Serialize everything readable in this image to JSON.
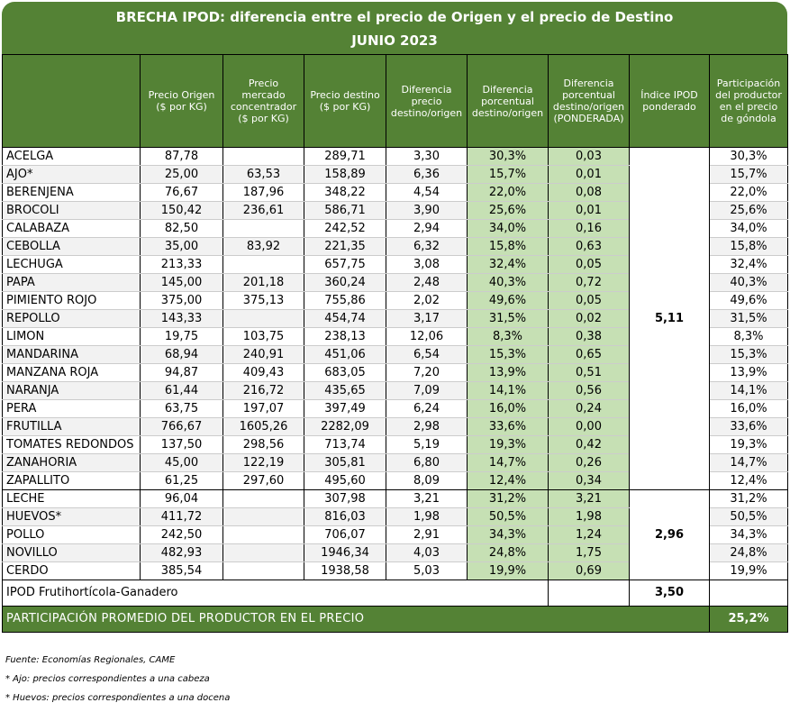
{
  "title": {
    "line1": "BRECHA IPOD: diferencia entre el precio de Origen y el precio de Destino",
    "line2": "JUNIO 2023"
  },
  "headers": [
    "",
    "Precio Origen ($ por KG)",
    "Precio mercado concentrador ($ por KG)",
    "Precio destino ($ por KG)",
    "Diferencia precio destino/origen",
    "Diferencia porcentual destino/origen",
    "Diferencia porcentual destino/origen (PONDERADA)",
    "Índice IPOD ponderado",
    "Participación del productor en el precio de góndola"
  ],
  "group1": {
    "ipod": "5,11",
    "rows": [
      {
        "name": "ACELGA",
        "origen": "87,78",
        "mercado": "",
        "destino": "289,71",
        "dif": "3,30",
        "pct": "30,3%",
        "pond": "0,03",
        "part": "30,3%"
      },
      {
        "name": "AJO*",
        "origen": "25,00",
        "mercado": "63,53",
        "destino": "158,89",
        "dif": "6,36",
        "pct": "15,7%",
        "pond": "0,01",
        "part": "15,7%"
      },
      {
        "name": "BERENJENA",
        "origen": "76,67",
        "mercado": "187,96",
        "destino": "348,22",
        "dif": "4,54",
        "pct": "22,0%",
        "pond": "0,08",
        "part": "22,0%"
      },
      {
        "name": "BROCOLI",
        "origen": "150,42",
        "mercado": "236,61",
        "destino": "586,71",
        "dif": "3,90",
        "pct": "25,6%",
        "pond": "0,01",
        "part": "25,6%"
      },
      {
        "name": "CALABAZA",
        "origen": "82,50",
        "mercado": "",
        "destino": "242,52",
        "dif": "2,94",
        "pct": "34,0%",
        "pond": "0,16",
        "part": "34,0%"
      },
      {
        "name": "CEBOLLA",
        "origen": "35,00",
        "mercado": "83,92",
        "destino": "221,35",
        "dif": "6,32",
        "pct": "15,8%",
        "pond": "0,63",
        "part": "15,8%"
      },
      {
        "name": "LECHUGA",
        "origen": "213,33",
        "mercado": "",
        "destino": "657,75",
        "dif": "3,08",
        "pct": "32,4%",
        "pond": "0,05",
        "part": "32,4%"
      },
      {
        "name": "PAPA",
        "origen": "145,00",
        "mercado": "201,18",
        "destino": "360,24",
        "dif": "2,48",
        "pct": "40,3%",
        "pond": "0,72",
        "part": "40,3%"
      },
      {
        "name": "PIMIENTO ROJO",
        "origen": "375,00",
        "mercado": "375,13",
        "destino": "755,86",
        "dif": "2,02",
        "pct": "49,6%",
        "pond": "0,05",
        "part": "49,6%"
      },
      {
        "name": "REPOLLO",
        "origen": "143,33",
        "mercado": "",
        "destino": "454,74",
        "dif": "3,17",
        "pct": "31,5%",
        "pond": "0,02",
        "part": "31,5%"
      },
      {
        "name": "LIMON",
        "origen": "19,75",
        "mercado": "103,75",
        "destino": "238,13",
        "dif": "12,06",
        "pct": "8,3%",
        "pond": "0,38",
        "part": "8,3%"
      },
      {
        "name": "MANDARINA",
        "origen": "68,94",
        "mercado": "240,91",
        "destino": "451,06",
        "dif": "6,54",
        "pct": "15,3%",
        "pond": "0,65",
        "part": "15,3%"
      },
      {
        "name": "MANZANA ROJA",
        "origen": "94,87",
        "mercado": "409,43",
        "destino": "683,05",
        "dif": "7,20",
        "pct": "13,9%",
        "pond": "0,51",
        "part": "13,9%"
      },
      {
        "name": "NARANJA",
        "origen": "61,44",
        "mercado": "216,72",
        "destino": "435,65",
        "dif": "7,09",
        "pct": "14,1%",
        "pond": "0,56",
        "part": "14,1%"
      },
      {
        "name": "PERA",
        "origen": "63,75",
        "mercado": "197,07",
        "destino": "397,49",
        "dif": "6,24",
        "pct": "16,0%",
        "pond": "0,24",
        "part": "16,0%"
      },
      {
        "name": "FRUTILLA",
        "origen": "766,67",
        "mercado": "1605,26",
        "destino": "2282,09",
        "dif": "2,98",
        "pct": "33,6%",
        "pond": "0,00",
        "part": "33,6%"
      },
      {
        "name": "TOMATES REDONDOS",
        "origen": "137,50",
        "mercado": "298,56",
        "destino": "713,74",
        "dif": "5,19",
        "pct": "19,3%",
        "pond": "0,42",
        "part": "19,3%"
      },
      {
        "name": "ZANAHORIA",
        "origen": "45,00",
        "mercado": "122,19",
        "destino": "305,81",
        "dif": "6,80",
        "pct": "14,7%",
        "pond": "0,26",
        "part": "14,7%"
      },
      {
        "name": "ZAPALLITO",
        "origen": "61,25",
        "mercado": "297,60",
        "destino": "495,60",
        "dif": "8,09",
        "pct": "12,4%",
        "pond": "0,34",
        "part": "12,4%"
      }
    ]
  },
  "group2": {
    "ipod": "2,96",
    "rows": [
      {
        "name": "LECHE",
        "origen": "96,04",
        "mercado": "",
        "destino": "307,98",
        "dif": "3,21",
        "pct": "31,2%",
        "pond": "3,21",
        "part": "31,2%"
      },
      {
        "name": "HUEVOS*",
        "origen": "411,72",
        "mercado": "",
        "destino": "816,03",
        "dif": "1,98",
        "pct": "50,5%",
        "pond": "1,98",
        "part": "50,5%"
      },
      {
        "name": "POLLO",
        "origen": "242,50",
        "mercado": "",
        "destino": "706,07",
        "dif": "2,91",
        "pct": "34,3%",
        "pond": "1,24",
        "part": "34,3%"
      },
      {
        "name": "NOVILLO",
        "origen": "482,93",
        "mercado": "",
        "destino": "1946,34",
        "dif": "4,03",
        "pct": "24,8%",
        "pond": "1,75",
        "part": "24,8%"
      },
      {
        "name": "CERDO",
        "origen": "385,54",
        "mercado": "",
        "destino": "1938,58",
        "dif": "5,03",
        "pct": "19,9%",
        "pond": "0,69",
        "part": "19,9%"
      }
    ]
  },
  "summary": {
    "label": "IPOD Frutihortícola-Ganadero",
    "value": "3,50"
  },
  "participation": {
    "label": "PARTICIPACIÓN PROMEDIO DEL PRODUCTOR EN EL PRECIO",
    "value": "25,2%"
  },
  "notes": [
    "Fuente: Economías Regionales, CAME",
    "* Ajo: precios correspondientes a una cabeza",
    "* Huevos: precios correspondientes a una docena"
  ],
  "colors": {
    "header_green": "#548235",
    "light_green": "#c6e0b4",
    "row_shade": "#f2f2f2"
  }
}
